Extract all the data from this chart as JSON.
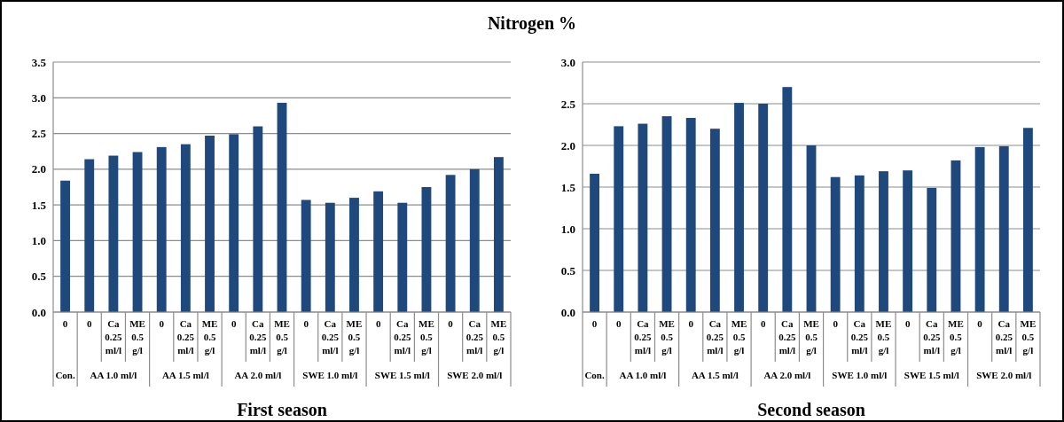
{
  "chart_data": [
    {
      "type": "bar",
      "title": "Nitrogen %",
      "xlabel": "First season",
      "categories": [
        "0",
        "0",
        "Ca 0.25 ml/l",
        "ME 0.5 g/l",
        "0",
        "Ca 0.25 ml/l",
        "ME 0.5 g/l",
        "0",
        "Ca 0.25 ml/l",
        "ME 0.5 g/l",
        "0",
        "Ca 0.25 ml/l",
        "ME 0.5 g/l",
        "0",
        "Ca 0.25 ml/l",
        "ME 0.5 g/l",
        "0",
        "Ca 0.25 ml/l",
        "ME 0.5 g/l"
      ],
      "values": [
        1.84,
        2.14,
        2.19,
        2.24,
        2.31,
        2.35,
        2.47,
        2.49,
        2.6,
        2.93,
        1.57,
        1.53,
        1.6,
        1.69,
        1.53,
        1.75,
        1.92,
        2.0,
        2.17
      ],
      "color": "#1f497d",
      "ylim": [
        0,
        3.5
      ],
      "yticks": [
        {
          "value": 0,
          "label": "0.0"
        },
        {
          "value": 0.5,
          "label": "0.5"
        },
        {
          "value": 1,
          "label": "1.0"
        },
        {
          "value": 1.5,
          "label": "1.5"
        },
        {
          "value": 2,
          "label": "2.0"
        },
        {
          "value": 2.5,
          "label": "2.5"
        },
        {
          "value": 3,
          "label": "3.0"
        },
        {
          "value": 3.5,
          "label": "3.5"
        }
      ],
      "grid": "y",
      "annotations": [
        "Con.",
        "AA 1.0 ml/l",
        "AA 1.5 ml/l",
        "AA 2.0 ml/l",
        "SWE 1.0 ml/l",
        "SWE 1.5 ml/l",
        "SWE 2.0 ml/l"
      ]
    },
    {
      "type": "bar",
      "xlabel": "Second season",
      "categories": [
        "0",
        "0",
        "Ca 0.25 ml/l",
        "ME 0.5 g/l",
        "0",
        "Ca 0.25 ml/l",
        "ME 0.5 g/l",
        "0",
        "Ca 0.25 ml/l",
        "ME 0.5 g/l",
        "0",
        "Ca 0.25 ml/l",
        "ME 0.5 g/l",
        "0",
        "Ca 0.25 ml/l",
        "ME 0.5 g/l",
        "0",
        "Ca 0.25 ml/l",
        "ME 0.5 g/l"
      ],
      "values": [
        1.66,
        2.23,
        2.26,
        2.35,
        2.33,
        2.2,
        2.51,
        2.5,
        2.7,
        2.0,
        1.62,
        1.64,
        1.69,
        1.7,
        1.49,
        1.82,
        1.98,
        1.99,
        2.21
      ],
      "color": "#1f497d",
      "ylim": [
        0,
        3
      ],
      "yticks": [
        {
          "value": 0,
          "label": "0.0"
        },
        {
          "value": 0.5,
          "label": "0.5"
        },
        {
          "value": 1,
          "label": "1.0"
        },
        {
          "value": 1.5,
          "label": "1.5"
        },
        {
          "value": 2,
          "label": "2.0"
        },
        {
          "value": 2.5,
          "label": "2.5"
        },
        {
          "value": 3,
          "label": "3.0"
        }
      ],
      "grid": "y",
      "annotations": [
        "Con.",
        "AA 1.0 ml/l",
        "AA 1.5 ml/l",
        "AA 2.0 ml/l",
        "SWE 1.0 ml/l",
        "SWE 1.5 ml/l",
        "SWE 2.0 ml/l"
      ]
    }
  ]
}
